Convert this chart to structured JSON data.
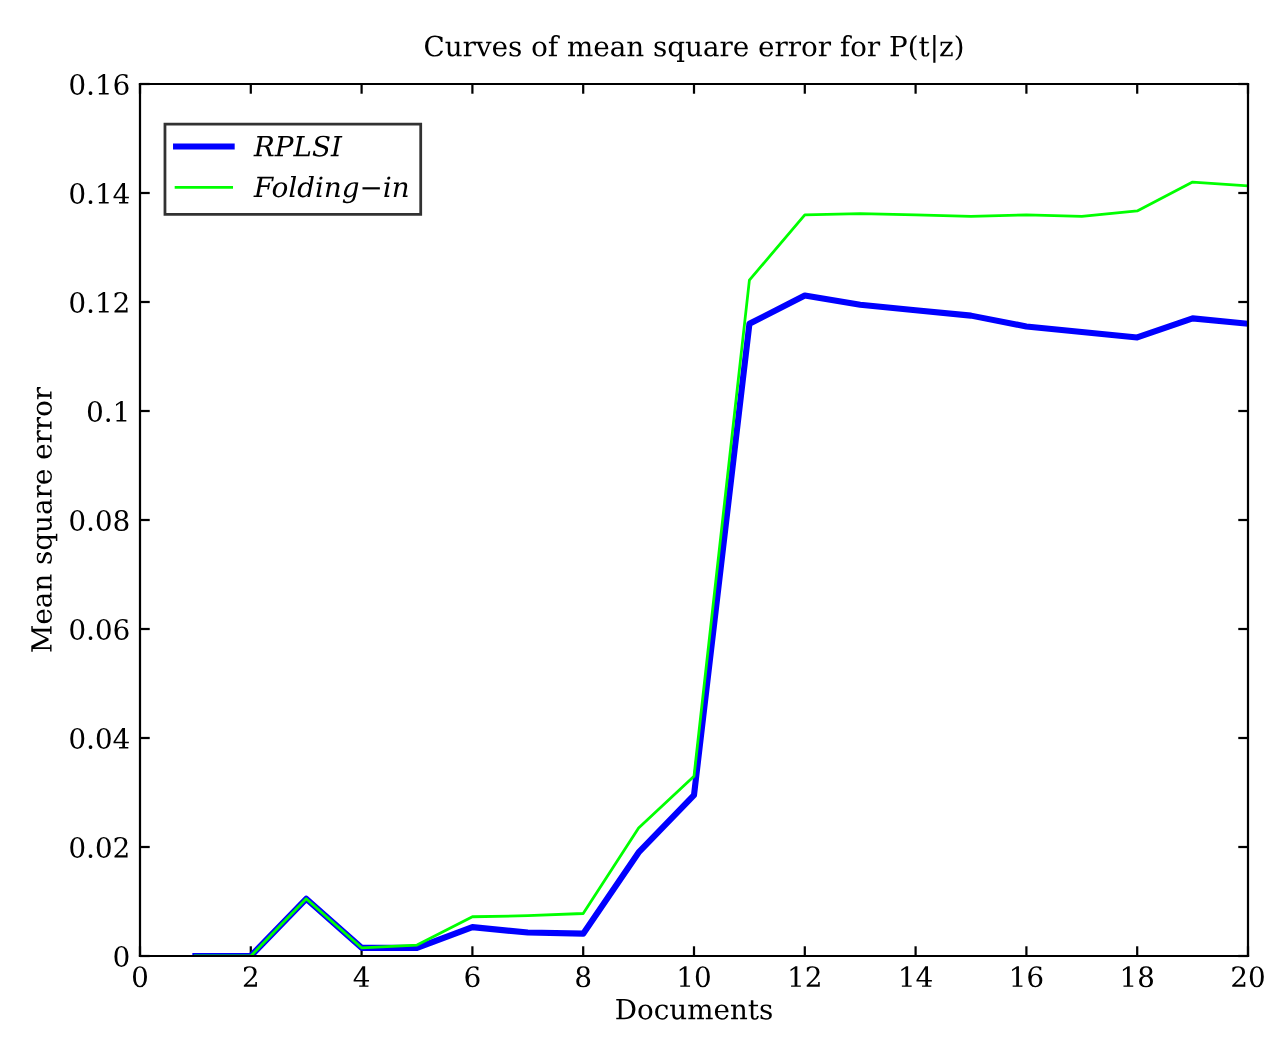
{
  "chart_data": {
    "type": "line",
    "title": "Curves of mean square error for P(t|z)",
    "xlabel": "Documents",
    "ylabel": "Mean square error",
    "x": [
      1,
      2,
      3,
      4,
      5,
      6,
      7,
      8,
      9,
      10,
      11,
      12,
      13,
      14,
      15,
      16,
      17,
      18,
      19,
      20
    ],
    "series": [
      {
        "name": "RPLSI",
        "color": "#0000ff",
        "values": [
          0,
          0,
          0.0105,
          0.0015,
          0.0015,
          0.0053,
          0.0043,
          0.0041,
          0.019,
          0.0295,
          0.116,
          0.1212,
          0.1195,
          0.1185,
          0.1175,
          0.1155,
          0.1145,
          0.1135,
          0.117,
          0.116
        ]
      },
      {
        "name": "Folding−in",
        "color": "#00ff00",
        "values": [
          0,
          0,
          0.0105,
          0.0015,
          0.002,
          0.0072,
          0.0074,
          0.0078,
          0.0235,
          0.033,
          0.124,
          0.136,
          0.1362,
          0.136,
          0.1357,
          0.136,
          0.1357,
          0.1367,
          0.142,
          0.1413
        ]
      }
    ],
    "xlim": [
      0,
      20
    ],
    "xticks": [
      0,
      2,
      4,
      6,
      8,
      10,
      12,
      14,
      16,
      18,
      20
    ],
    "ylim": [
      0,
      0.16
    ],
    "yticks": [
      0,
      0.02,
      0.04,
      0.06,
      0.08,
      {
        "value": 0.1,
        "label": "0.1"
      },
      0.12,
      0.14,
      0.16
    ],
    "grid": false,
    "legend": "top left",
    "marker": "none",
    "line_style": "solid"
  }
}
